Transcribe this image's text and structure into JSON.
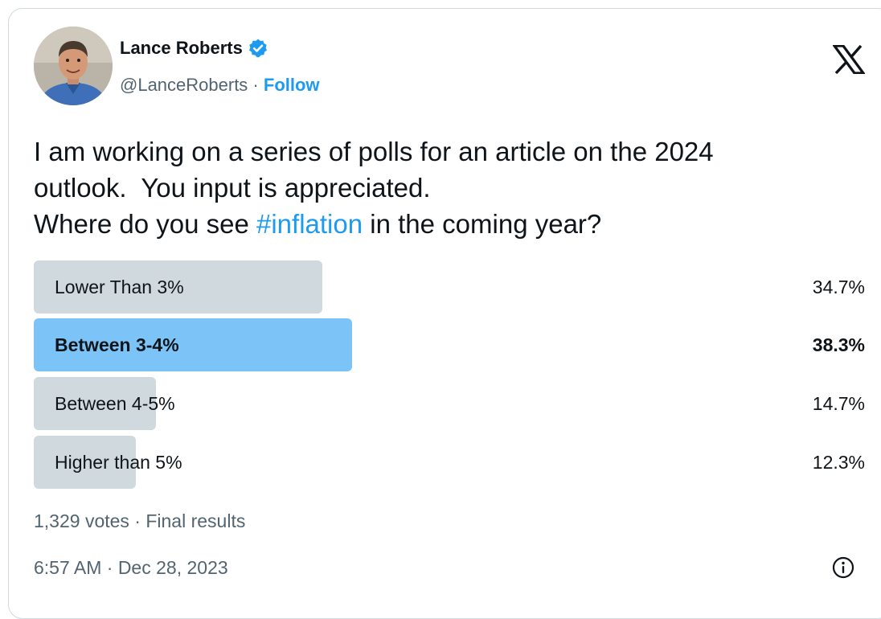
{
  "author": {
    "display_name": "Lance Roberts",
    "handle": "@LanceRoberts",
    "separator": " · ",
    "follow_label": "Follow",
    "verified": true
  },
  "tweet": {
    "text_line1": "I am working on a series of polls for an article on the 2024",
    "text_line2": "outlook.  You input is appreciated.",
    "text_line3_before": "Where do you see ",
    "hashtag": "#inflation",
    "text_line3_after": " in the coming year?"
  },
  "poll": {
    "options": [
      {
        "label": "Lower Than 3%",
        "percent_text": "34.7%",
        "percent": 34.7,
        "winner": false
      },
      {
        "label": "Between 3-4%",
        "percent_text": "38.3%",
        "percent": 38.3,
        "winner": true
      },
      {
        "label": "Between 4-5%",
        "percent_text": "14.7%",
        "percent": 14.7,
        "winner": false
      },
      {
        "label": "Higher than 5%",
        "percent_text": "12.3%",
        "percent": 12.3,
        "winner": false
      }
    ],
    "summary": "1,329 votes · Final results"
  },
  "timestamp": "6:57 AM · Dec 28, 2023",
  "icons": {
    "platform": "x-logo-icon",
    "verified": "verified-badge-icon",
    "info": "info-icon"
  },
  "colors": {
    "accent": "#1d9bf0",
    "winner_bar": "#7cc4f8",
    "bar": "#cfd9de",
    "text": "#0f1419",
    "muted": "#536471"
  }
}
